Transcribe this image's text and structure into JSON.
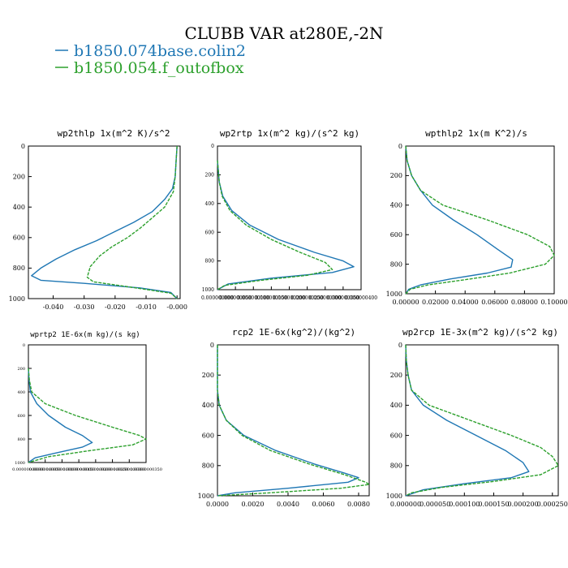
{
  "title": "CLUBB VAR at280E,-2N",
  "legend": [
    {
      "name": "b1850.074base.colin2",
      "color": "#1f77b4"
    },
    {
      "name": "b1850.054.f_outofbox",
      "color": "#2ca02c"
    }
  ],
  "colors": {
    "blue": "#1f77b4",
    "green": "#2ca02c",
    "axis": "#000000",
    "background": "#ffffff"
  },
  "chart_data": [
    {
      "type": "line",
      "title": "wp2thlp   1x(m^2 K)/s^2",
      "xlim": [
        -0.048,
        0.001
      ],
      "ylim": [
        1000,
        0
      ],
      "y_ticks": [
        0,
        200,
        400,
        600,
        800,
        1000
      ],
      "y_tick_labels": [
        "0",
        "200",
        "400",
        "600",
        "800",
        "1000"
      ],
      "x_ticks": [
        -0.04,
        -0.03,
        -0.02,
        -0.01,
        0
      ],
      "x_tick_labels": [
        "-0.040",
        "-0.030",
        "-0.020",
        "-0.010",
        "-0.000"
      ],
      "series": [
        {
          "name": "b1850.074base.colin2",
          "points": [
            [
              0,
              0
            ],
            [
              -0.0003,
              100
            ],
            [
              -0.0006,
              200
            ],
            [
              -0.0015,
              280
            ],
            [
              -0.004,
              350
            ],
            [
              -0.008,
              430
            ],
            [
              -0.014,
              500
            ],
            [
              -0.02,
              560
            ],
            [
              -0.026,
              620
            ],
            [
              -0.033,
              680
            ],
            [
              -0.039,
              740
            ],
            [
              -0.044,
              800
            ],
            [
              -0.047,
              850
            ],
            [
              -0.044,
              880
            ],
            [
              -0.03,
              900
            ],
            [
              -0.012,
              930
            ],
            [
              -0.002,
              960
            ],
            [
              0,
              1000
            ]
          ]
        },
        {
          "name": "b1850.054.f_outofbox",
          "points": [
            [
              0,
              0
            ],
            [
              -0.0003,
              100
            ],
            [
              -0.0006,
              200
            ],
            [
              -0.0012,
              300
            ],
            [
              -0.004,
              400
            ],
            [
              -0.008,
              470
            ],
            [
              -0.012,
              540
            ],
            [
              -0.016,
              600
            ],
            [
              -0.021,
              660
            ],
            [
              -0.025,
              720
            ],
            [
              -0.028,
              790
            ],
            [
              -0.029,
              860
            ],
            [
              -0.027,
              890
            ],
            [
              -0.02,
              910
            ],
            [
              -0.01,
              940
            ],
            [
              -0.002,
              965
            ],
            [
              0,
              1000
            ]
          ]
        }
      ]
    },
    {
      "type": "line",
      "title": "wp2rtp   1x(m^2 kg)/(s^2 kg)",
      "xlim": [
        0,
        4e-07
      ],
      "ylim": [
        1000,
        0
      ],
      "y_ticks": [
        0,
        200,
        400,
        600,
        800,
        1000
      ],
      "y_tick_labels": [
        "0",
        "200",
        "400",
        "600",
        "800",
        "1000"
      ],
      "x_ticks": [
        0,
        5e-08,
        1e-07,
        1.5e-07,
        2e-07,
        2.5e-07,
        3e-07,
        3.5e-07,
        4e-07
      ],
      "x_tick_labels": [
        "0.000000000",
        "0.000000050",
        "0.000000100",
        "0.000000150",
        "0.000000200",
        "0.000000250",
        "0.000000300",
        "0.000000350",
        "0.000000400"
      ],
      "series": [
        {
          "name": "b1850.074base.colin2",
          "points": [
            [
              0,
              100
            ],
            [
              5e-09,
              250
            ],
            [
              1.5e-08,
              350
            ],
            [
              4e-08,
              450
            ],
            [
              9e-08,
              550
            ],
            [
              1.7e-07,
              650
            ],
            [
              2.7e-07,
              740
            ],
            [
              3.5e-07,
              800
            ],
            [
              3.8e-07,
              840
            ],
            [
              3.2e-07,
              880
            ],
            [
              1.5e-07,
              920
            ],
            [
              3e-08,
              960
            ],
            [
              0,
              1000
            ]
          ]
        },
        {
          "name": "b1850.054.f_outofbox",
          "points": [
            [
              0,
              100
            ],
            [
              5e-09,
              250
            ],
            [
              1.3e-08,
              350
            ],
            [
              3.5e-08,
              450
            ],
            [
              8e-08,
              550
            ],
            [
              1.5e-07,
              650
            ],
            [
              2.3e-07,
              740
            ],
            [
              3e-07,
              810
            ],
            [
              3.2e-07,
              860
            ],
            [
              2.5e-07,
              900
            ],
            [
              1.2e-07,
              935
            ],
            [
              2e-08,
              970
            ],
            [
              0,
              1000
            ]
          ]
        }
      ]
    },
    {
      "type": "line",
      "title": "wpthlp2   1x(m K^2)/s",
      "xlim": [
        0,
        0.1
      ],
      "ylim": [
        1000,
        0
      ],
      "y_ticks": [
        0,
        200,
        400,
        600,
        800,
        1000
      ],
      "y_tick_labels": [
        "0",
        "200",
        "400",
        "600",
        "800",
        "1000"
      ],
      "x_ticks": [
        0,
        0.02,
        0.04,
        0.06,
        0.08,
        0.1
      ],
      "x_tick_labels": [
        "0.00000",
        "0.02000",
        "0.04000",
        "0.06000",
        "0.08000",
        "0.10000"
      ],
      "series": [
        {
          "name": "b1850.074base.colin2",
          "points": [
            [
              0,
              0
            ],
            [
              0.001,
              100
            ],
            [
              0.004,
              200
            ],
            [
              0.01,
              300
            ],
            [
              0.018,
              400
            ],
            [
              0.032,
              500
            ],
            [
              0.048,
              600
            ],
            [
              0.062,
              700
            ],
            [
              0.072,
              770
            ],
            [
              0.071,
              820
            ],
            [
              0.055,
              860
            ],
            [
              0.03,
              900
            ],
            [
              0.01,
              940
            ],
            [
              0.002,
              970
            ],
            [
              0,
              1000
            ]
          ]
        },
        {
          "name": "b1850.054.f_outofbox",
          "points": [
            [
              0,
              0
            ],
            [
              0.001,
              100
            ],
            [
              0.004,
              200
            ],
            [
              0.01,
              300
            ],
            [
              0.025,
              400
            ],
            [
              0.055,
              500
            ],
            [
              0.082,
              600
            ],
            [
              0.097,
              680
            ],
            [
              0.1,
              740
            ],
            [
              0.094,
              800
            ],
            [
              0.07,
              860
            ],
            [
              0.04,
              905
            ],
            [
              0.015,
              940
            ],
            [
              0.003,
              970
            ],
            [
              0,
              1000
            ]
          ]
        }
      ]
    },
    {
      "type": "line",
      "title": "wprtp2  1E-6x(m kg)/(s kg)",
      "xlim": [
        0,
        3.5e-09
      ],
      "ylim": [
        1000,
        0
      ],
      "y_ticks": [
        0,
        200,
        400,
        600,
        800,
        1000
      ],
      "y_tick_labels": [
        "0",
        "200",
        "400",
        "600",
        "800",
        "1000"
      ],
      "x_ticks": [
        0,
        5e-10,
        1e-09,
        1.5e-09,
        2e-09,
        2.5e-09,
        3e-09,
        3.5e-09
      ],
      "x_tick_labels": [
        "0.00000000000",
        "0.00000000050",
        "0.00000000100",
        "0.00000000150",
        "0.00000000200",
        "0.00000000250",
        "0.00000000300",
        "0.00000000350"
      ],
      "series": [
        {
          "name": "b1850.074base.colin2",
          "points": [
            [
              0,
              200
            ],
            [
              2e-11,
              300
            ],
            [
              6e-11,
              400
            ],
            [
              2.5e-10,
              500
            ],
            [
              6e-10,
              600
            ],
            [
              1.1e-09,
              700
            ],
            [
              1.6e-09,
              770
            ],
            [
              1.9e-09,
              830
            ],
            [
              1.6e-09,
              870
            ],
            [
              8e-10,
              920
            ],
            [
              2e-10,
              960
            ],
            [
              0,
              1000
            ]
          ]
        },
        {
          "name": "b1850.054.f_outofbox",
          "points": [
            [
              0,
              200
            ],
            [
              3e-11,
              300
            ],
            [
              1e-10,
              400
            ],
            [
              5e-10,
              500
            ],
            [
              1.4e-09,
              600
            ],
            [
              2.5e-09,
              700
            ],
            [
              3.3e-09,
              770
            ],
            [
              3.5e-09,
              800
            ],
            [
              3.1e-09,
              850
            ],
            [
              1.8e-09,
              900
            ],
            [
              6e-10,
              950
            ],
            [
              0,
              1000
            ]
          ]
        }
      ]
    },
    {
      "type": "line",
      "title": "rcp2  1E-6x(kg^2)/(kg^2)",
      "xlim": [
        0,
        0.0086
      ],
      "ylim": [
        1000,
        0
      ],
      "y_ticks": [
        0,
        200,
        400,
        600,
        800,
        1000
      ],
      "y_tick_labels": [
        "0",
        "200",
        "400",
        "600",
        "800",
        "1000"
      ],
      "x_ticks": [
        0,
        0.002,
        0.004,
        0.006,
        0.008
      ],
      "x_tick_labels": [
        "0.0000",
        "0.0020",
        "0.0040",
        "0.0060",
        "0.0080"
      ],
      "series": [
        {
          "name": "b1850.074base.colin2",
          "points": [
            [
              0,
              0
            ],
            [
              0,
              300
            ],
            [
              0.0001,
              400
            ],
            [
              0.0005,
              500
            ],
            [
              0.0015,
              600
            ],
            [
              0.0033,
              700
            ],
            [
              0.0055,
              790
            ],
            [
              0.0072,
              850
            ],
            [
              0.008,
              880
            ],
            [
              0.0074,
              910
            ],
            [
              0.004,
              950
            ],
            [
              0.001,
              980
            ],
            [
              0,
              1000
            ]
          ]
        },
        {
          "name": "b1850.054.f_outofbox",
          "points": [
            [
              0,
              0
            ],
            [
              0,
              300
            ],
            [
              0.0001,
              400
            ],
            [
              0.0005,
              500
            ],
            [
              0.0014,
              600
            ],
            [
              0.003,
              700
            ],
            [
              0.0052,
              790
            ],
            [
              0.0072,
              860
            ],
            [
              0.0084,
              910
            ],
            [
              0.0086,
              925
            ],
            [
              0.007,
              950
            ],
            [
              0.003,
              980
            ],
            [
              0,
              1000
            ]
          ]
        }
      ]
    },
    {
      "type": "line",
      "title": "wp2rcp  1E-3x(m^2 kg)/(s^2 kg)",
      "xlim": [
        0,
        0.00026
      ],
      "ylim": [
        1000,
        0
      ],
      "y_ticks": [
        0,
        200,
        400,
        600,
        800,
        1000
      ],
      "y_tick_labels": [
        "0",
        "200",
        "400",
        "600",
        "800",
        "1000"
      ],
      "x_ticks": [
        0,
        5e-05,
        0.0001,
        0.00015,
        0.0002,
        0.00025
      ],
      "x_tick_labels": [
        "0.000000",
        "0.000050",
        "0.000100",
        "0.000150",
        "0.000200",
        "0.000250"
      ],
      "series": [
        {
          "name": "b1850.074base.colin2",
          "points": [
            [
              0,
              0
            ],
            [
              1e-06,
              100
            ],
            [
              4e-06,
              200
            ],
            [
              1e-05,
              300
            ],
            [
              3e-05,
              400
            ],
            [
              7e-05,
              500
            ],
            [
              0.00012,
              600
            ],
            [
              0.00017,
              700
            ],
            [
              0.0002,
              780
            ],
            [
              0.00021,
              840
            ],
            [
              0.00018,
              880
            ],
            [
              0.0001,
              920
            ],
            [
              3e-05,
              960
            ],
            [
              0,
              1000
            ]
          ]
        },
        {
          "name": "b1850.054.f_outofbox",
          "points": [
            [
              0,
              0
            ],
            [
              1e-06,
              100
            ],
            [
              4e-06,
              200
            ],
            [
              1e-05,
              300
            ],
            [
              4e-05,
              400
            ],
            [
              0.00011,
              500
            ],
            [
              0.00018,
              600
            ],
            [
              0.00023,
              680
            ],
            [
              0.00025,
              740
            ],
            [
              0.00026,
              800
            ],
            [
              0.00023,
              860
            ],
            [
              0.00015,
              905
            ],
            [
              6e-05,
              945
            ],
            [
              1e-05,
              980
            ],
            [
              0,
              1000
            ]
          ]
        }
      ]
    }
  ]
}
